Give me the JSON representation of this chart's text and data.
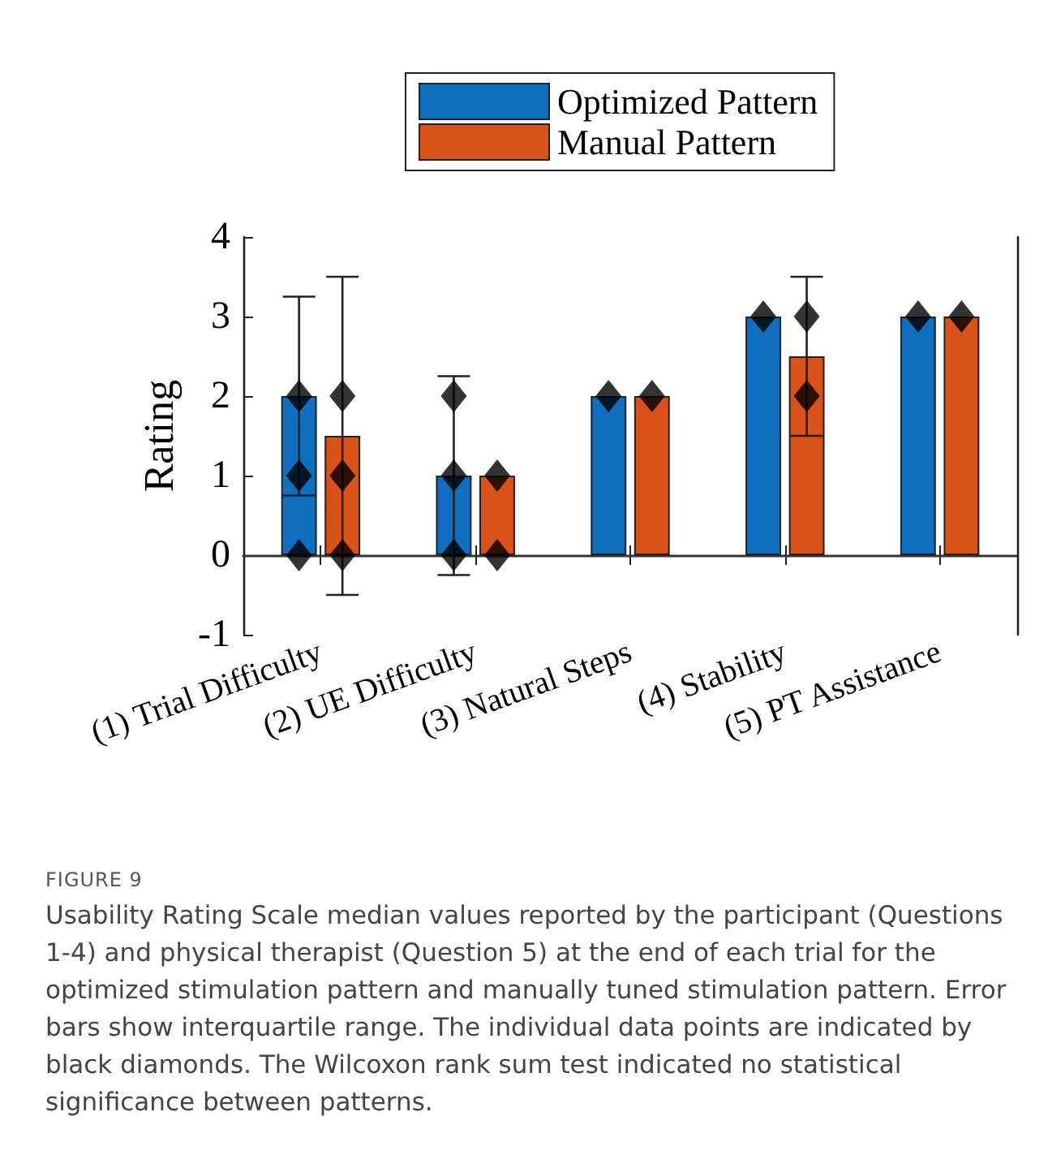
{
  "chart_data": {
    "type": "bar",
    "ylabel": "Rating",
    "categories": [
      "(1) Trial Difficulty",
      "(2) UE Difficulty",
      "(3) Natural Steps",
      "(4) Stability",
      "(5) PT Assistance"
    ],
    "series": [
      {
        "name": "Optimized Pattern",
        "color": "#0f6ebf",
        "values": [
          2,
          1,
          2,
          3,
          3
        ],
        "errors": [
          [
            0.75,
            3.25
          ],
          [
            -0.25,
            2.25
          ],
          null,
          null,
          null
        ]
      },
      {
        "name": "Manual Pattern",
        "color": "#d95219",
        "values": [
          1.5,
          1,
          2,
          2.5,
          3
        ],
        "errors": [
          [
            -0.5,
            3.5
          ],
          null,
          null,
          [
            1.5,
            3.5
          ],
          null
        ]
      },
      {
        "type": "scatter",
        "color": "#000000",
        "marker": "diamond",
        "x": [
          "(1) Trial Difficulty",
          "(1) Trial Difficulty",
          "(1) Trial Difficulty",
          "(2) UE Difficulty",
          "(2) UE Difficulty",
          "(2) UE Difficulty",
          "(3) Natural Steps",
          "(4) Stability",
          "(5) PT Assistance"
        ],
        "values": [
          0,
          1,
          2,
          0,
          1,
          2,
          2,
          3,
          3
        ]
      },
      {
        "type": "scatter",
        "color": "#000000",
        "marker": "diamond",
        "x": [
          "(1) Trial Difficulty",
          "(1) Trial Difficulty",
          "(1) Trial Difficulty",
          "(2) UE Difficulty",
          "(2) UE Difficulty",
          "(3) Natural Steps",
          "(4) Stability",
          "(4) Stability",
          "(5) PT Assistance"
        ],
        "values": [
          0,
          1,
          2,
          0,
          1,
          2,
          2,
          3,
          3
        ]
      }
    ],
    "ylim": [
      -1,
      4
    ],
    "yticks": [
      -1,
      0,
      1,
      2,
      3,
      4
    ],
    "grid": false,
    "legend": "top",
    "ref_lines": [
      {
        "axis": "y",
        "value": 0,
        "color": "#333333"
      }
    ],
    "annotations": [
      "FIGURE 9",
      "Usability Rating Scale median values reported by the participant (Questions 1-4) and physical therapist (Question 5) at the end of each trial for the optimized stimulation pattern and manually tuned stimulation pattern. Error bars show interquartile range. The individual data points are indicated by black diamonds. The Wilcoxon rank sum test indicated no statistical significance between patterns."
    ]
  }
}
